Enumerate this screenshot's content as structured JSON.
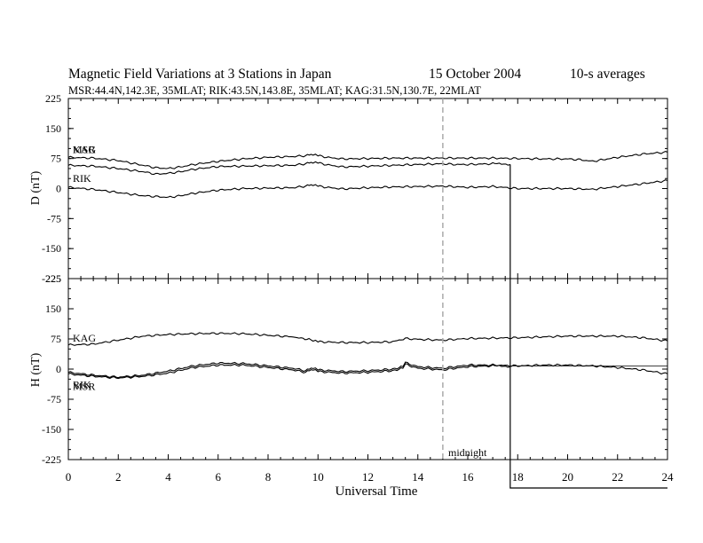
{
  "header": {
    "title": "Magnetic Field Variations at 3 Stations in Japan",
    "date": "15 October 2004",
    "averaging": "10-s averages",
    "stations_line": "MSR:44.4N,142.3E, 35MLAT;  RIK:43.5N,143.8E, 35MLAT;  KAG:31.5N,130.7E, 22MLAT"
  },
  "x_axis": {
    "label": "Universal Time",
    "range": [
      0,
      24
    ],
    "ticks": [
      "0",
      "2",
      "4",
      "6",
      "8",
      "10",
      "12",
      "14",
      "16",
      "18",
      "20",
      "22",
      "24"
    ],
    "marker": {
      "x": 15,
      "label": "midnight"
    },
    "colors": {
      "axis": "#000000",
      "marker": "#aaaaaa"
    }
  },
  "chart_data": [
    {
      "type": "line",
      "panel": "D",
      "ylabel": "D (nT)",
      "ylim": [
        -225,
        225
      ],
      "yticks": [
        "225",
        "150",
        "75",
        "0",
        "-75",
        "-150",
        "-225"
      ],
      "series": [
        {
          "name": "KAG",
          "x": [
            0,
            1,
            2,
            3,
            3.5,
            4,
            4.5,
            5,
            6,
            7,
            8,
            9,
            9.5,
            9.8,
            10,
            10.5,
            11,
            12,
            13,
            14,
            15,
            16,
            17,
            18,
            19,
            20,
            20.5,
            21,
            22,
            23,
            24
          ],
          "y": [
            78,
            76,
            70,
            58,
            52,
            50,
            54,
            60,
            68,
            74,
            78,
            80,
            82,
            86,
            82,
            77,
            74,
            75,
            76,
            76,
            76,
            76,
            76,
            75,
            74,
            74,
            72,
            68,
            78,
            86,
            91
          ]
        },
        {
          "name": "MSR",
          "x": [
            0,
            1,
            2,
            3,
            3.5,
            4,
            4.5,
            5,
            6,
            7,
            8,
            9,
            9.5,
            9.8,
            10,
            10.5,
            11,
            12,
            13,
            14,
            15,
            15.5,
            16,
            17,
            17.7
          ],
          "y": [
            58,
            56,
            50,
            42,
            36,
            38,
            42,
            48,
            55,
            56,
            57,
            58,
            62,
            66,
            64,
            58,
            54,
            56,
            58,
            60,
            62,
            60,
            60,
            62,
            60
          ]
        },
        {
          "name": "RIK",
          "x": [
            0,
            1,
            2,
            3,
            3.5,
            4,
            4.5,
            5,
            6,
            7,
            8,
            9,
            9.5,
            9.8,
            10,
            10.5,
            11,
            12,
            13,
            14,
            15,
            16,
            17,
            18,
            19,
            20,
            21,
            22,
            23,
            24
          ],
          "y": [
            3,
            -2,
            -10,
            -18,
            -20,
            -22,
            -18,
            -12,
            -4,
            0,
            1,
            2,
            6,
            10,
            6,
            2,
            -1,
            2,
            4,
            5,
            6,
            3,
            5,
            0,
            0,
            0,
            -2,
            5,
            12,
            20
          ]
        }
      ]
    },
    {
      "type": "line",
      "panel": "H",
      "ylabel": "H (nT)",
      "ylim": [
        -225,
        225
      ],
      "yticks": [
        "225",
        "150",
        "75",
        "0",
        "-75",
        "-150",
        "-225"
      ],
      "series": [
        {
          "name": "KAG",
          "x": [
            0,
            1,
            2,
            3,
            4,
            5,
            6,
            7,
            8,
            9,
            9.8,
            10,
            11,
            12,
            13,
            13.5,
            14,
            15,
            16,
            17,
            18,
            19,
            20,
            21,
            22,
            23,
            24
          ],
          "y": [
            60,
            62,
            72,
            82,
            86,
            88,
            89,
            88,
            84,
            80,
            72,
            68,
            66,
            66,
            68,
            76,
            74,
            72,
            76,
            77,
            78,
            80,
            82,
            82,
            82,
            78,
            70
          ]
        },
        {
          "name": "RIK",
          "x": [
            0,
            1,
            2,
            3,
            4,
            5,
            6,
            7,
            8,
            9,
            9.5,
            9.8,
            10,
            11,
            12,
            13,
            13.4,
            13.5,
            14,
            15,
            16,
            17,
            18,
            19,
            20,
            21,
            22,
            23,
            24
          ],
          "y": [
            -8,
            -15,
            -20,
            -15,
            -5,
            8,
            15,
            14,
            8,
            2,
            -4,
            4,
            -2,
            -6,
            -4,
            0,
            6,
            16,
            6,
            2,
            10,
            10,
            8,
            10,
            10,
            8,
            4,
            -2,
            -12
          ]
        },
        {
          "name": "MSR",
          "x": [
            0,
            1,
            2,
            3,
            4,
            5,
            6,
            7,
            8,
            9,
            9.5,
            9.8,
            10,
            11,
            12,
            13,
            13.4,
            13.5,
            14,
            15,
            16,
            17,
            17.7
          ],
          "y": [
            -12,
            -18,
            -22,
            -18,
            -10,
            4,
            10,
            10,
            4,
            -2,
            -8,
            0,
            -6,
            -10,
            -8,
            -4,
            2,
            12,
            2,
            -2,
            6,
            8,
            6
          ]
        }
      ]
    }
  ]
}
